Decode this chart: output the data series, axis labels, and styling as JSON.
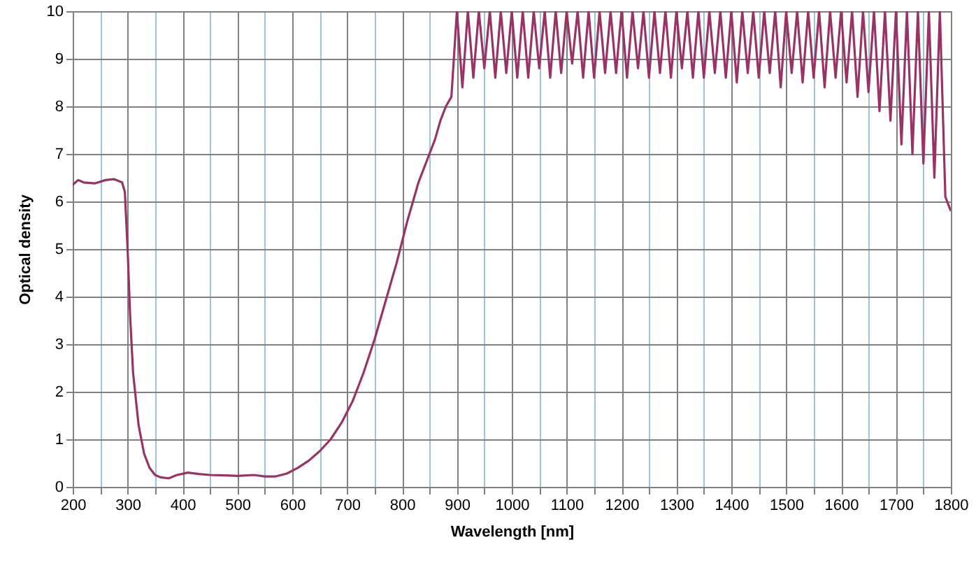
{
  "chart_data": {
    "type": "line",
    "xlabel": "Wavelength [nm]",
    "ylabel": "Optical density",
    "xlim": [
      200,
      1800
    ],
    "ylim": [
      0,
      10
    ],
    "xticks": [
      200,
      {
        "value": 250,
        "label": null
      },
      300,
      {
        "value": 350,
        "label": null
      },
      400,
      {
        "value": 450,
        "label": null
      },
      500,
      {
        "value": 550,
        "label": null
      },
      600,
      {
        "value": 650,
        "label": null
      },
      700,
      {
        "value": 750,
        "label": null
      },
      800,
      {
        "value": 850,
        "label": null
      },
      900,
      {
        "value": 950,
        "label": null
      },
      1000,
      {
        "value": 1050,
        "label": null
      },
      1100,
      {
        "value": 1150,
        "label": null
      },
      1200,
      {
        "value": 1250,
        "label": null
      },
      1300,
      {
        "value": 1350,
        "label": null
      },
      1400,
      {
        "value": 1450,
        "label": null
      },
      1500,
      {
        "value": 1550,
        "label": null
      },
      1600,
      {
        "value": 1650,
        "label": null
      },
      1700,
      {
        "value": 1750,
        "label": null
      },
      1800
    ],
    "yticks": [
      0,
      1,
      2,
      3,
      4,
      5,
      6,
      7,
      8,
      9,
      10
    ],
    "grid": true,
    "series": [
      {
        "color": "#993366",
        "x": [
          200,
          210,
          220,
          240,
          260,
          275,
          290,
          295,
          300,
          305,
          310,
          320,
          330,
          340,
          350,
          360,
          375,
          390,
          410,
          430,
          450,
          480,
          500,
          530,
          550,
          570,
          590,
          610,
          630,
          650,
          670,
          690,
          710,
          730,
          750,
          770,
          790,
          810,
          830,
          850,
          860,
          870,
          880,
          890,
          900,
          910,
          920,
          930,
          940,
          950,
          960,
          970,
          980,
          990,
          1000,
          1010,
          1020,
          1030,
          1040,
          1050,
          1060,
          1070,
          1080,
          1090,
          1100,
          1110,
          1120,
          1130,
          1140,
          1150,
          1160,
          1170,
          1180,
          1190,
          1200,
          1210,
          1220,
          1230,
          1240,
          1250,
          1260,
          1270,
          1280,
          1290,
          1300,
          1310,
          1320,
          1330,
          1340,
          1350,
          1360,
          1370,
          1380,
          1390,
          1400,
          1410,
          1420,
          1430,
          1440,
          1450,
          1460,
          1470,
          1480,
          1490,
          1500,
          1510,
          1520,
          1530,
          1540,
          1550,
          1560,
          1570,
          1580,
          1590,
          1600,
          1610,
          1620,
          1630,
          1640,
          1650,
          1660,
          1670,
          1680,
          1690,
          1700,
          1710,
          1720,
          1730,
          1740,
          1750,
          1760,
          1770,
          1780,
          1790,
          1800
        ],
        "values": [
          6.35,
          6.45,
          6.4,
          6.38,
          6.45,
          6.47,
          6.4,
          6.2,
          5.0,
          3.5,
          2.4,
          1.3,
          0.7,
          0.4,
          0.25,
          0.2,
          0.18,
          0.25,
          0.3,
          0.27,
          0.25,
          0.24,
          0.23,
          0.25,
          0.22,
          0.22,
          0.28,
          0.4,
          0.55,
          0.75,
          1.0,
          1.35,
          1.8,
          2.4,
          3.1,
          3.9,
          4.7,
          5.6,
          6.4,
          7.0,
          7.3,
          7.7,
          8.0,
          8.2,
          10,
          8.4,
          10,
          8.6,
          10,
          8.8,
          10,
          8.6,
          10,
          8.7,
          10,
          8.6,
          10,
          8.6,
          10,
          8.8,
          10,
          8.6,
          10,
          8.7,
          10,
          8.9,
          10,
          8.6,
          10,
          8.6,
          10,
          8.7,
          10,
          8.7,
          10,
          8.6,
          10,
          8.8,
          10,
          8.6,
          10,
          8.7,
          10,
          8.6,
          10,
          8.8,
          10,
          8.6,
          10,
          8.6,
          10,
          8.7,
          10,
          8.6,
          10,
          8.5,
          10,
          8.7,
          10,
          8.6,
          10,
          8.7,
          10,
          8.4,
          10,
          8.7,
          10,
          8.5,
          10,
          8.6,
          10,
          8.4,
          10,
          8.6,
          10,
          8.5,
          10,
          8.2,
          10,
          8.3,
          10,
          7.9,
          10,
          7.7,
          10,
          7.2,
          10,
          7.0,
          10,
          6.8,
          10,
          6.5,
          10,
          6.1,
          5.8
        ]
      }
    ]
  }
}
